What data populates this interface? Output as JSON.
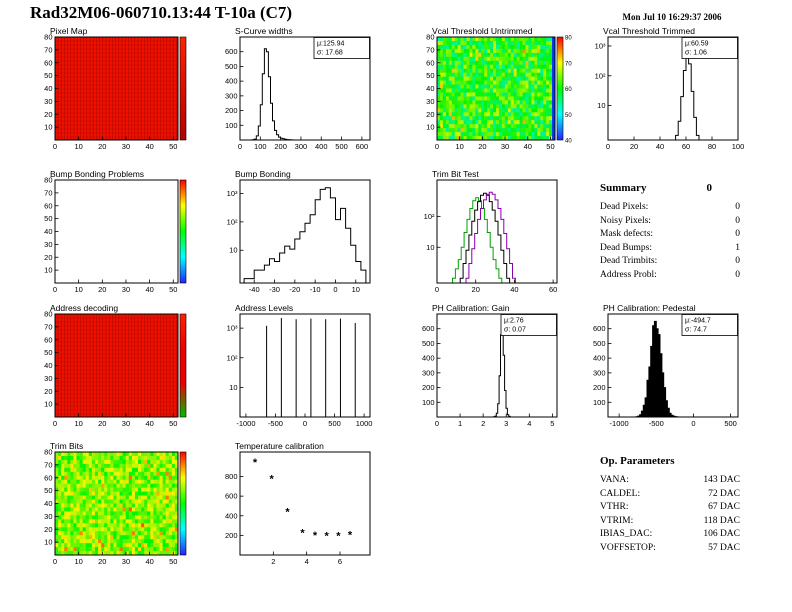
{
  "page": {
    "title": "Rad32M06-060710.13:44 T-10a (C7)",
    "datetime": "Mon Jul 10 16:29:37 2006"
  },
  "chart_data": [
    {
      "id": "pixel_map",
      "type": "heatmap",
      "variant": "solid",
      "title": "Pixel Map",
      "fill": "#ee1100",
      "x_range": [
        0,
        52
      ],
      "y_range": [
        0,
        80
      ],
      "x_ticks": [
        0,
        10,
        20,
        30,
        40,
        50
      ],
      "y_ticks": [
        10,
        20,
        30,
        40,
        50,
        60,
        70,
        80
      ],
      "colorbar": {
        "stops": [
          "#ff2200",
          "#b30000"
        ]
      }
    },
    {
      "id": "scurve_widths",
      "type": "hist",
      "title": "S-Curve widths",
      "x_range": [
        0,
        640
      ],
      "x_ticks": [
        0,
        100,
        200,
        300,
        400,
        500,
        600
      ],
      "y_range": [
        0,
        700
      ],
      "y_ticks": [
        100,
        200,
        300,
        400,
        500,
        600
      ],
      "stats_lines": [
        "μ:125.94",
        "σ: 17.68"
      ],
      "series": [
        {
          "color": "#000000",
          "fill": false,
          "x0": 60,
          "dx": 10,
          "values": [
            2,
            6,
            28,
            95,
            240,
            450,
            620,
            600,
            430,
            250,
            130,
            65,
            35,
            20,
            12,
            8,
            5,
            3,
            2,
            1
          ]
        }
      ]
    },
    {
      "id": "vcal_untrimmed",
      "type": "heatmap",
      "variant": "noise",
      "title": "Vcal Threshold Untrimmed",
      "seed": 7,
      "noise": {
        "base": 0.52,
        "spread": 0.38,
        "last_col": 0.06
      },
      "x_range": [
        0,
        52
      ],
      "y_range": [
        0,
        80
      ],
      "x_ticks": [
        0,
        10,
        20,
        30,
        40,
        50
      ],
      "y_ticks": [
        10,
        20,
        30,
        40,
        50,
        60,
        70,
        80
      ],
      "colorbar": {
        "stops": [
          "#ff0000",
          "#ffff00",
          "#00ff00",
          "#00ffff",
          "#2222ff"
        ],
        "labels": [
          "80",
          "70",
          "60",
          "50",
          "40"
        ]
      }
    },
    {
      "id": "vcal_trimmed",
      "type": "hist",
      "title": "Vcal Threshold Trimmed",
      "x_range": [
        0,
        100
      ],
      "x_ticks": [
        0,
        20,
        40,
        60,
        80,
        100
      ],
      "y_scale": "log",
      "y_range": [
        0.7,
        2000
      ],
      "y_ticks": [
        [
          10,
          "10"
        ],
        [
          100,
          "10²"
        ],
        [
          1000,
          "10³"
        ]
      ],
      "stats_lines": [
        "μ:60.59",
        "σ: 1.06"
      ],
      "series": [
        {
          "color": "#000000",
          "fill": false,
          "x0": 52,
          "dx": 2,
          "values": [
            1,
            3,
            20,
            150,
            700,
            250,
            30,
            4,
            1
          ]
        }
      ]
    },
    {
      "id": "bump_problems",
      "type": "heatmap",
      "variant": "empty",
      "title": "Bump Bonding Problems",
      "x_range": [
        0,
        52
      ],
      "y_range": [
        0,
        80
      ],
      "x_ticks": [
        0,
        10,
        20,
        30,
        40,
        50
      ],
      "y_ticks": [
        10,
        20,
        30,
        40,
        50,
        60,
        70,
        80
      ],
      "colorbar": {
        "stops": [
          "#ff0000",
          "#ffff00",
          "#00ff00",
          "#00ffff",
          "#2222ff"
        ]
      }
    },
    {
      "id": "bump_bonding",
      "type": "hist",
      "title": "Bump Bonding",
      "x_range": [
        -47,
        17
      ],
      "x_ticks": [
        -40,
        -30,
        -20,
        -10,
        0,
        10
      ],
      "y_scale": "log",
      "y_range": [
        0.7,
        3000
      ],
      "y_ticks": [
        [
          10,
          "10"
        ],
        [
          100,
          "10²"
        ],
        [
          1000,
          "10³"
        ]
      ],
      "series": [
        {
          "color": "#000000",
          "fill": false,
          "x0": -45,
          "dx": 2.5,
          "values": [
            1,
            1,
            2,
            2,
            3,
            5,
            4,
            8,
            14,
            11,
            25,
            45,
            90,
            180,
            600,
            1400,
            1600,
            700,
            120,
            300,
            60,
            15,
            4,
            2
          ]
        }
      ]
    },
    {
      "id": "trimbit_test",
      "type": "hist",
      "title": "Trim Bit Test",
      "x_range": [
        0,
        62
      ],
      "x_ticks": [
        0,
        20,
        40,
        60
      ],
      "y_scale": "log",
      "y_range": [
        0.7,
        1500
      ],
      "y_ticks": [
        [
          10,
          "10"
        ],
        [
          100,
          "10²"
        ]
      ],
      "series": [
        {
          "color": "#00a000",
          "fill": false,
          "x0": 8,
          "dx": 1.5,
          "values": [
            1,
            2,
            4,
            10,
            30,
            80,
            180,
            320,
            400,
            320,
            180,
            80,
            30,
            10,
            4,
            2,
            1
          ]
        },
        {
          "color": "#000000",
          "fill": false,
          "x0": 12,
          "dx": 1.5,
          "values": [
            1,
            3,
            8,
            25,
            70,
            160,
            300,
            480,
            560,
            480,
            300,
            160,
            70,
            25,
            8,
            3,
            1
          ]
        },
        {
          "color": "#8800aa",
          "fill": false,
          "x0": 15,
          "dx": 1.5,
          "values": [
            1,
            3,
            9,
            28,
            80,
            180,
            340,
            520,
            600,
            520,
            340,
            180,
            80,
            28,
            9,
            3,
            1
          ]
        }
      ]
    },
    {
      "id": "addr_decoding",
      "type": "heatmap",
      "variant": "solid",
      "title": "Address decoding",
      "fill": "#ee1100",
      "x_range": [
        0,
        52
      ],
      "y_range": [
        0,
        80
      ],
      "x_ticks": [
        0,
        10,
        20,
        30,
        40,
        50
      ],
      "y_ticks": [
        10,
        20,
        30,
        40,
        50,
        60,
        70,
        80
      ],
      "colorbar": {
        "stops": [
          "#ff2200",
          "#ee0000",
          "#ee0000",
          "#00bb00"
        ]
      }
    },
    {
      "id": "addr_levels",
      "type": "spikes",
      "title": "Address Levels",
      "x_range": [
        -1100,
        1100
      ],
      "x_ticks": [
        -1000,
        -500,
        0,
        500,
        1000
      ],
      "y_scale": "log",
      "y_range": [
        1,
        3000
      ],
      "y_ticks": [
        [
          10,
          "10"
        ],
        [
          100,
          "10²"
        ],
        [
          1000,
          "10³"
        ]
      ],
      "points": [
        [
          -650,
          1200
        ],
        [
          -400,
          2200
        ],
        [
          -150,
          2000
        ],
        [
          100,
          2100
        ],
        [
          350,
          2000
        ],
        [
          600,
          2100
        ],
        [
          850,
          1500
        ]
      ]
    },
    {
      "id": "ph_gain",
      "type": "hist",
      "title": "PH Calibration: Gain",
      "x_range": [
        0,
        5.2
      ],
      "x_ticks": [
        0,
        1,
        2,
        3,
        4,
        5
      ],
      "y_range": [
        0,
        700
      ],
      "y_ticks": [
        100,
        200,
        300,
        400,
        500,
        600
      ],
      "stats_lines": [
        "μ:2.76",
        "σ: 0.07"
      ],
      "series": [
        {
          "color": "#000000",
          "fill": false,
          "x0": 2.45,
          "dx": 0.06,
          "values": [
            2,
            6,
            25,
            90,
            280,
            560,
            620,
            420,
            180,
            60,
            15,
            4
          ]
        }
      ]
    },
    {
      "id": "ph_pedestal",
      "type": "hist",
      "title": "PH Calibration: Pedestal",
      "x_range": [
        -1150,
        600
      ],
      "x_ticks": [
        -1000,
        -500,
        0,
        500
      ],
      "y_range": [
        0,
        700
      ],
      "y_ticks": [
        100,
        200,
        300,
        400,
        500,
        600
      ],
      "stats_lines": [
        "μ:-494.7",
        "σ: 74.7"
      ],
      "series": [
        {
          "color": "#000000",
          "fill": true,
          "x0": -800,
          "dx": 25,
          "values": [
            0,
            2,
            6,
            15,
            40,
            80,
            130,
            250,
            340,
            480,
            620,
            650,
            600,
            560,
            430,
            300,
            200,
            110,
            60,
            25,
            12,
            6,
            3,
            1
          ]
        }
      ]
    },
    {
      "id": "trim_bits",
      "type": "heatmap",
      "variant": "noise",
      "title": "Trim Bits",
      "seed": 13,
      "noise": {
        "base": 0.63,
        "spread": 0.28
      },
      "x_range": [
        0,
        52
      ],
      "y_range": [
        0,
        80
      ],
      "x_ticks": [
        0,
        10,
        20,
        30,
        40,
        50
      ],
      "y_ticks": [
        10,
        20,
        30,
        40,
        50,
        60,
        70,
        80
      ],
      "colorbar": {
        "stops": [
          "#ff0000",
          "#ffff00",
          "#00ff00",
          "#00ffff",
          "#2222ff"
        ]
      }
    },
    {
      "id": "temp_cal",
      "type": "scatter",
      "title": "Temperature calibration",
      "x_range": [
        0,
        7.8
      ],
      "x_ticks": [
        2,
        4,
        6
      ],
      "y_range": [
        0,
        1050
      ],
      "y_ticks": [
        200,
        400,
        600,
        800
      ],
      "points": [
        [
          0.9,
          950
        ],
        [
          1.9,
          780
        ],
        [
          2.85,
          445
        ],
        [
          3.75,
          230
        ],
        [
          4.5,
          205
        ],
        [
          5.2,
          200
        ],
        [
          5.9,
          200
        ],
        [
          6.6,
          210
        ]
      ]
    }
  ],
  "summary": {
    "header": "Summary",
    "header_value": "0",
    "rows": [
      {
        "label": "Dead Pixels:",
        "value": "0"
      },
      {
        "label": "Noisy Pixels:",
        "value": "0"
      },
      {
        "label": "Mask defects:",
        "value": "0"
      },
      {
        "label": "Dead Bumps:",
        "value": "1"
      },
      {
        "label": "Dead Trimbits:",
        "value": "0"
      },
      {
        "label": "Address Probl:",
        "value": "0"
      }
    ]
  },
  "op_params": {
    "header": "Op. Parameters",
    "rows": [
      {
        "label": "VANA:",
        "value": "143 DAC"
      },
      {
        "label": "CALDEL:",
        "value": "72 DAC"
      },
      {
        "label": "VTHR:",
        "value": "67 DAC"
      },
      {
        "label": "VTRIM:",
        "value": "118 DAC"
      },
      {
        "label": "IBIAS_DAC:",
        "value": "106 DAC"
      },
      {
        "label": "VOFFSETOP:",
        "value": "57 DAC"
      }
    ]
  }
}
